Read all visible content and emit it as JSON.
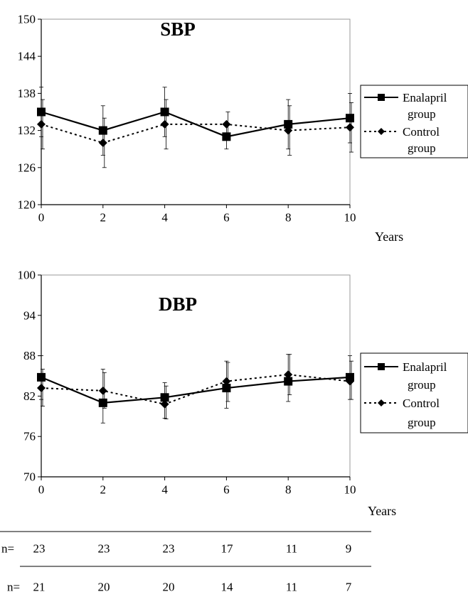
{
  "chart_data": [
    {
      "type": "line",
      "title": "SBP",
      "xlabel": "Years",
      "ylabel": "",
      "x": [
        0,
        2,
        4,
        6,
        8,
        10
      ],
      "ylim": [
        120,
        150
      ],
      "yticks": [
        120,
        126,
        132,
        138,
        144,
        150
      ],
      "grid": false,
      "legend": "right",
      "series": [
        {
          "name": "Enalapril group",
          "values": [
            135,
            132,
            135,
            131,
            133,
            134
          ],
          "error_low": [
            131,
            128,
            131,
            129,
            129,
            130
          ],
          "error_high": [
            139,
            136,
            139,
            133,
            137,
            138
          ],
          "line_style": "solid",
          "marker": "square"
        },
        {
          "name": "Control group",
          "values": [
            133,
            130,
            133,
            133,
            132,
            132.5
          ],
          "error_low": [
            129,
            126,
            129,
            131,
            128,
            128.5
          ],
          "error_high": [
            137,
            134,
            137,
            135,
            136,
            136.5
          ],
          "line_style": "dotted",
          "marker": "diamond"
        }
      ]
    },
    {
      "type": "line",
      "title": "DBP",
      "xlabel": "Years",
      "ylabel": "",
      "x": [
        0,
        2,
        4,
        6,
        8,
        10
      ],
      "ylim": [
        70,
        100
      ],
      "yticks": [
        70,
        76,
        82,
        88,
        94,
        100
      ],
      "grid": false,
      "legend": "right",
      "series": [
        {
          "name": "Enalapril group",
          "values": [
            84.8,
            81,
            81.8,
            83.2,
            84.2,
            84.8
          ],
          "error_low": [
            81.5,
            78,
            78.7,
            80.2,
            81.2,
            81.5
          ],
          "error_high": [
            88,
            86,
            84,
            87.2,
            88.2,
            88
          ],
          "line_style": "solid",
          "marker": "square"
        },
        {
          "name": "Control group",
          "values": [
            83.2,
            82.8,
            80.8,
            84.2,
            85.2,
            84.2
          ],
          "error_low": [
            80.5,
            80.2,
            78.6,
            81.2,
            82.2,
            81.5
          ],
          "error_high": [
            86,
            85.5,
            83.5,
            87,
            88.2,
            87.2
          ],
          "line_style": "dotted",
          "marker": "diamond"
        }
      ]
    }
  ],
  "sample_sizes": {
    "label": "n=",
    "rows": [
      {
        "label": "n=",
        "values": [
          23,
          23,
          23,
          17,
          11,
          9
        ]
      },
      {
        "label": "n=",
        "values": [
          21,
          20,
          20,
          14,
          11,
          7
        ]
      }
    ]
  }
}
